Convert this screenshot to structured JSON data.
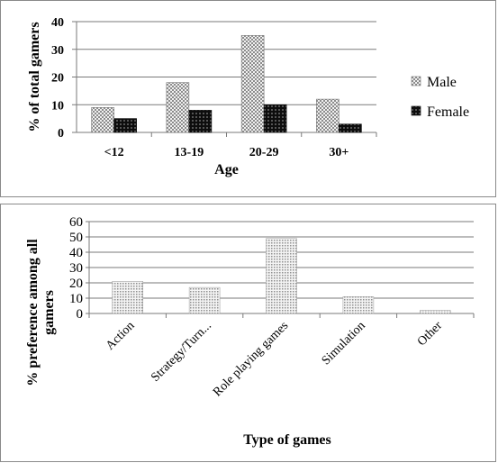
{
  "chart_data": [
    {
      "type": "bar",
      "categories": [
        "<12",
        "13-19",
        "20-29",
        "30+"
      ],
      "series": [
        {
          "name": "Male",
          "values": [
            9,
            18,
            35,
            12
          ],
          "color": "#c8c8c8",
          "pattern": "checker"
        },
        {
          "name": "Female",
          "values": [
            5,
            8,
            10,
            3
          ],
          "color": "#1a1a1a",
          "pattern": "dark-checker"
        }
      ],
      "xlabel": "Age",
      "ylabel": "% of total gamers",
      "ylim": [
        0,
        40
      ],
      "yticks": [
        0,
        10,
        20,
        30,
        40
      ],
      "grid": true,
      "legend": "right"
    },
    {
      "type": "bar",
      "categories": [
        "Action",
        "Strategy/Turn...",
        "Role playing games",
        "Simulation",
        "Other"
      ],
      "values": [
        21,
        17,
        49,
        11,
        2
      ],
      "xlabel": "Type of games",
      "ylabel": "% preference among all gamers",
      "ylim": [
        0,
        60
      ],
      "yticks": [
        0,
        10,
        20,
        30,
        40,
        50,
        60
      ],
      "grid": true,
      "legend": "none"
    }
  ]
}
